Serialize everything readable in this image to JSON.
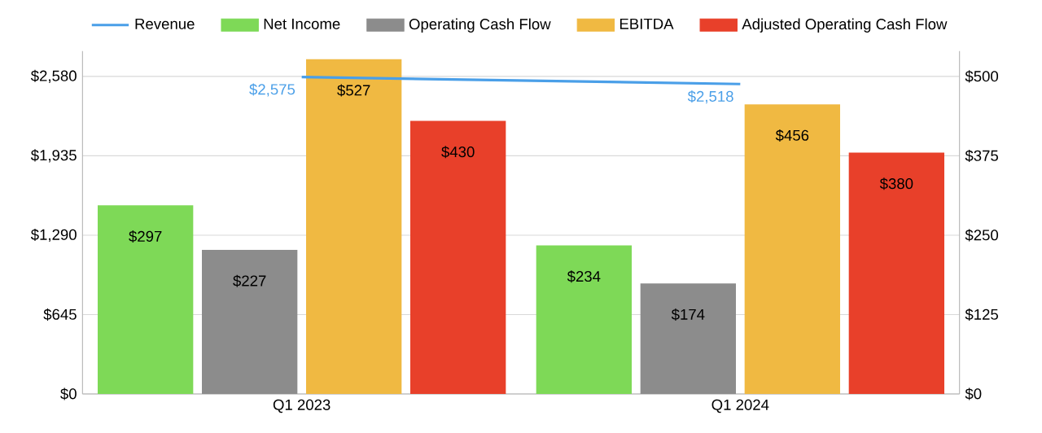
{
  "chart_data": {
    "type": "bar",
    "categories": [
      "Q1 2023",
      "Q1 2024"
    ],
    "series": [
      {
        "name": "Revenue",
        "type": "line",
        "axis": "y",
        "color": "#4a9fe8",
        "values": [
          2575,
          2518
        ],
        "value_labels": [
          "$2,575",
          "$2,518"
        ],
        "marker": "none",
        "line_style": "solid"
      },
      {
        "name": "Net Income",
        "axis": "y2",
        "color": "#7ed957",
        "values": [
          297,
          234
        ],
        "value_labels": [
          "$297",
          "$234"
        ]
      },
      {
        "name": "Operating Cash Flow",
        "axis": "y2",
        "color": "#8c8c8c",
        "values": [
          227,
          174
        ],
        "value_labels": [
          "$227",
          "$174"
        ]
      },
      {
        "name": "EBITDA",
        "axis": "y2",
        "color": "#f0b942",
        "values": [
          527,
          456
        ],
        "value_labels": [
          "$527",
          "$456"
        ]
      },
      {
        "name": "Adjusted Operating Cash Flow",
        "axis": "y2",
        "color": "#e8402a",
        "values": [
          430,
          380
        ],
        "value_labels": [
          "$430",
          "$380"
        ]
      }
    ],
    "ylim": [
      0,
      2786.4
    ],
    "yticks": [
      {
        "value": 0,
        "label": "$0"
      },
      {
        "value": 645,
        "label": "$645"
      },
      {
        "value": 1290,
        "label": "$1,290"
      },
      {
        "value": 1935,
        "label": "$1,935"
      },
      {
        "value": 2580,
        "label": "$2,580"
      }
    ],
    "y2lim": [
      0,
      540
    ],
    "y2ticks": [
      {
        "value": 0,
        "label": "$0"
      },
      {
        "value": 125,
        "label": "$125"
      },
      {
        "value": 250,
        "label": "$250"
      },
      {
        "value": 375,
        "label": "$375"
      },
      {
        "value": 500,
        "label": "$500"
      }
    ],
    "grid": "y",
    "legend": "top"
  }
}
